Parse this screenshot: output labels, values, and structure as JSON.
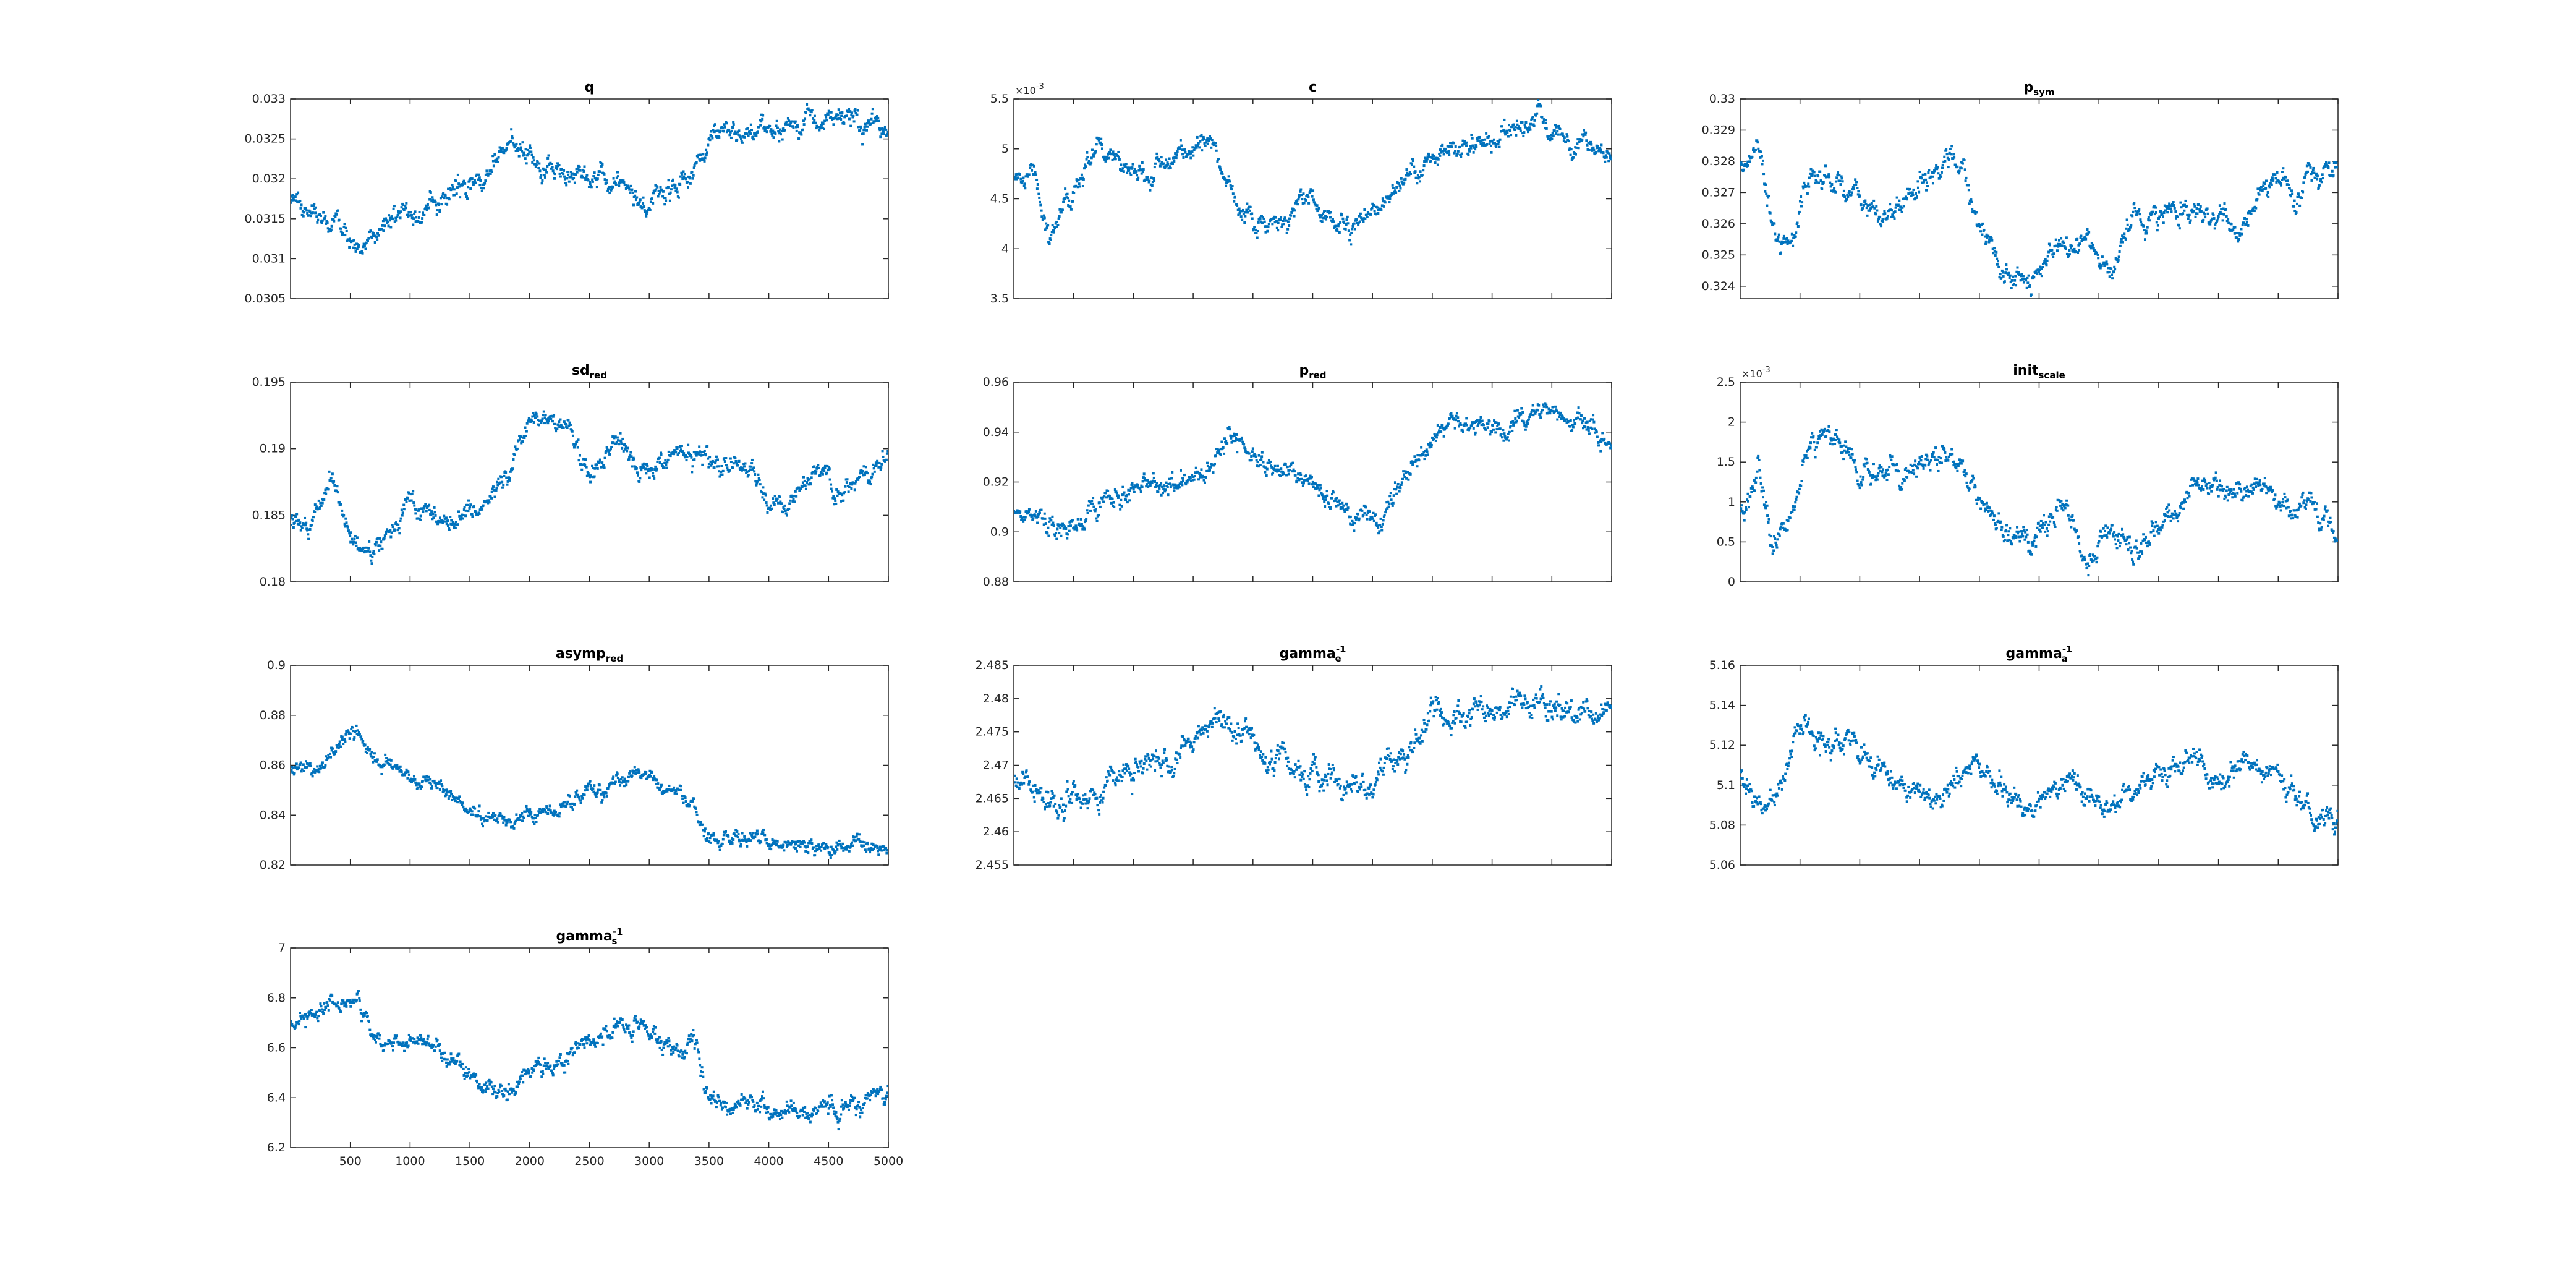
{
  "figure": {
    "background": "#ffffff"
  },
  "chart_data": [
    {
      "type": "scatter",
      "title": "q",
      "title_sub": "",
      "title_sup": "",
      "color": "#0072BD",
      "xlim": [
        0,
        5000
      ],
      "ylim": [
        0.0305,
        0.033
      ],
      "yticks": [
        "0.0305",
        "0.031",
        "0.0315",
        "0.032",
        "0.0325",
        "0.033"
      ],
      "y_exponent": "",
      "show_xtick_labels": false,
      "xticks": [
        "500",
        "1000",
        "1500",
        "2000",
        "2500",
        "3000",
        "3500",
        "4000",
        "4500",
        "5000"
      ],
      "grid": false,
      "trend": [
        [
          0,
          0.03175
        ],
        [
          200,
          0.0316
        ],
        [
          400,
          0.03135
        ],
        [
          600,
          0.0311
        ],
        [
          800,
          0.03155
        ],
        [
          1000,
          0.0316
        ],
        [
          1300,
          0.0318
        ],
        [
          1600,
          0.032
        ],
        [
          1800,
          0.03235
        ],
        [
          2000,
          0.03235
        ],
        [
          2200,
          0.0321
        ],
        [
          2500,
          0.03195
        ],
        [
          2800,
          0.0319
        ],
        [
          3000,
          0.03165
        ],
        [
          3200,
          0.03195
        ],
        [
          3450,
          0.03215
        ],
        [
          3550,
          0.03258
        ],
        [
          4000,
          0.0326
        ],
        [
          4500,
          0.03275
        ],
        [
          5000,
          0.03265
        ]
      ],
      "noise": 8e-05
    },
    {
      "type": "scatter",
      "title": "c",
      "title_sub": "",
      "title_sup": "",
      "color": "#0072BD",
      "xlim": [
        0,
        5000
      ],
      "ylim": [
        0.0035,
        0.0055
      ],
      "yticks": [
        "3.5",
        "4",
        "4.5",
        "5",
        "5.5"
      ],
      "y_exponent": "-3",
      "show_xtick_labels": false,
      "xticks": [
        "500",
        "1000",
        "1500",
        "2000",
        "2500",
        "3000",
        "3500",
        "4000",
        "4500",
        "5000"
      ],
      "grid": false,
      "trend": [
        [
          0,
          0.00465
        ],
        [
          150,
          0.0048
        ],
        [
          300,
          0.0041
        ],
        [
          450,
          0.0045
        ],
        [
          700,
          0.00498
        ],
        [
          900,
          0.0049
        ],
        [
          1000,
          0.0047
        ],
        [
          1300,
          0.0049
        ],
        [
          1600,
          0.00505
        ],
        [
          1750,
          0.0047
        ],
        [
          2000,
          0.00425
        ],
        [
          2300,
          0.00435
        ],
        [
          2500,
          0.0045
        ],
        [
          2700,
          0.0042
        ],
        [
          2900,
          0.0043
        ],
        [
          3200,
          0.00465
        ],
        [
          3500,
          0.00495
        ],
        [
          3900,
          0.00505
        ],
        [
          4200,
          0.0052
        ],
        [
          4500,
          0.0052
        ],
        [
          4700,
          0.00505
        ],
        [
          5000,
          0.0049
        ]
      ],
      "noise": 6e-05
    },
    {
      "type": "scatter",
      "title": "p",
      "title_sub": "sym",
      "title_sup": "",
      "color": "#0072BD",
      "xlim": [
        0,
        5000
      ],
      "ylim": [
        0.3236,
        0.33
      ],
      "yticks": [
        "0.324",
        "0.325",
        "0.326",
        "0.327",
        "0.328",
        "0.329",
        "0.33"
      ],
      "y_exponent": "",
      "show_xtick_labels": false,
      "xticks": [
        "500",
        "1000",
        "1500",
        "2000",
        "2500",
        "3000",
        "3500",
        "4000",
        "4500",
        "5000"
      ],
      "grid": false,
      "trend": [
        [
          0,
          0.3278
        ],
        [
          150,
          0.3285
        ],
        [
          300,
          0.3255
        ],
        [
          450,
          0.3255
        ],
        [
          600,
          0.3275
        ],
        [
          900,
          0.3272
        ],
        [
          1200,
          0.3262
        ],
        [
          1400,
          0.3268
        ],
        [
          1700,
          0.328
        ],
        [
          1850,
          0.328
        ],
        [
          2000,
          0.326
        ],
        [
          2200,
          0.3243
        ],
        [
          2400,
          0.3242
        ],
        [
          2600,
          0.325
        ],
        [
          2900,
          0.3255
        ],
        [
          3100,
          0.3245
        ],
        [
          3300,
          0.3262
        ],
        [
          3600,
          0.3265
        ],
        [
          3900,
          0.3262
        ],
        [
          4200,
          0.3257
        ],
        [
          4400,
          0.3273
        ],
        [
          4600,
          0.3268
        ],
        [
          4800,
          0.3278
        ],
        [
          5000,
          0.3274
        ]
      ],
      "noise": 0.00022
    },
    {
      "type": "scatter",
      "title": "sd",
      "title_sub": "red",
      "title_sup": "",
      "color": "#0072BD",
      "xlim": [
        0,
        5000
      ],
      "ylim": [
        0.18,
        0.195
      ],
      "yticks": [
        "0.18",
        "0.185",
        "0.19",
        "0.195"
      ],
      "y_exponent": "",
      "show_xtick_labels": false,
      "xticks": [
        "500",
        "1000",
        "1500",
        "2000",
        "2500",
        "3000",
        "3500",
        "4000",
        "4500",
        "5000"
      ],
      "grid": false,
      "trend": [
        [
          0,
          0.1845
        ],
        [
          150,
          0.1838
        ],
        [
          350,
          0.188
        ],
        [
          500,
          0.183
        ],
        [
          700,
          0.1822
        ],
        [
          900,
          0.184
        ],
        [
          1000,
          0.1858
        ],
        [
          1300,
          0.185
        ],
        [
          1600,
          0.1855
        ],
        [
          1800,
          0.188
        ],
        [
          2000,
          0.1925
        ],
        [
          2300,
          0.1918
        ],
        [
          2500,
          0.188
        ],
        [
          2700,
          0.1905
        ],
        [
          2900,
          0.1885
        ],
        [
          3200,
          0.1895
        ],
        [
          3500,
          0.189
        ],
        [
          3800,
          0.1885
        ],
        [
          4000,
          0.1865
        ],
        [
          4200,
          0.186
        ],
        [
          4400,
          0.189
        ],
        [
          4600,
          0.1865
        ],
        [
          4800,
          0.188
        ],
        [
          5000,
          0.1895
        ]
      ],
      "noise": 0.00045
    },
    {
      "type": "scatter",
      "title": "p",
      "title_sub": "red",
      "title_sup": "",
      "color": "#0072BD",
      "xlim": [
        0,
        5000
      ],
      "ylim": [
        0.88,
        0.96
      ],
      "yticks": [
        "0.88",
        "0.9",
        "0.92",
        "0.94",
        "0.96"
      ],
      "y_exponent": "",
      "show_xtick_labels": false,
      "xticks": [
        "500",
        "1000",
        "1500",
        "2000",
        "2500",
        "3000",
        "3500",
        "4000",
        "4500",
        "5000"
      ],
      "grid": false,
      "trend": [
        [
          0,
          0.908
        ],
        [
          200,
          0.905
        ],
        [
          400,
          0.9
        ],
        [
          600,
          0.905
        ],
        [
          800,
          0.915
        ],
        [
          1000,
          0.915
        ],
        [
          1300,
          0.92
        ],
        [
          1600,
          0.925
        ],
        [
          1800,
          0.938
        ],
        [
          2000,
          0.932
        ],
        [
          2200,
          0.925
        ],
        [
          2500,
          0.918
        ],
        [
          2800,
          0.91
        ],
        [
          3000,
          0.902
        ],
        [
          3200,
          0.915
        ],
        [
          3500,
          0.94
        ],
        [
          3800,
          0.943
        ],
        [
          4100,
          0.942
        ],
        [
          4400,
          0.948
        ],
        [
          4700,
          0.945
        ],
        [
          5000,
          0.937
        ]
      ],
      "noise": 0.0025
    },
    {
      "type": "scatter",
      "title": "init",
      "title_sub": "scale",
      "title_sup": "",
      "color": "#0072BD",
      "xlim": [
        0,
        5000
      ],
      "ylim": [
        0,
        0.0025
      ],
      "yticks": [
        "0",
        "0.5",
        "1",
        "1.5",
        "2",
        "2.5"
      ],
      "y_exponent": "-3",
      "show_xtick_labels": false,
      "xticks": [
        "500",
        "1000",
        "1500",
        "2000",
        "2500",
        "3000",
        "3500",
        "4000",
        "4500",
        "5000"
      ],
      "grid": false,
      "trend": [
        [
          0,
          0.0009
        ],
        [
          150,
          0.0012
        ],
        [
          300,
          0.0004
        ],
        [
          450,
          0.001
        ],
        [
          600,
          0.0018
        ],
        [
          800,
          0.0019
        ],
        [
          1000,
          0.0013
        ],
        [
          1300,
          0.0014
        ],
        [
          1600,
          0.0016
        ],
        [
          1800,
          0.0015
        ],
        [
          2000,
          0.001
        ],
        [
          2200,
          0.0005
        ],
        [
          2500,
          0.0006
        ],
        [
          2700,
          0.001
        ],
        [
          2900,
          0.0003
        ],
        [
          3100,
          0.0006
        ],
        [
          3300,
          0.0004
        ],
        [
          3500,
          0.0007
        ],
        [
          3800,
          0.0012
        ],
        [
          4100,
          0.0011
        ],
        [
          4400,
          0.0012
        ],
        [
          4600,
          0.0008
        ],
        [
          4800,
          0.001
        ],
        [
          5000,
          0.0004
        ]
      ],
      "noise": 9e-05
    },
    {
      "type": "scatter",
      "title": "asymp",
      "title_sub": "red",
      "title_sup": "",
      "color": "#0072BD",
      "xlim": [
        0,
        5000
      ],
      "ylim": [
        0.82,
        0.9
      ],
      "yticks": [
        "0.82",
        "0.84",
        "0.86",
        "0.88",
        "0.9"
      ],
      "y_exponent": "",
      "show_xtick_labels": false,
      "xticks": [
        "500",
        "1000",
        "1500",
        "2000",
        "2500",
        "3000",
        "3500",
        "4000",
        "4500",
        "5000"
      ],
      "grid": false,
      "trend": [
        [
          0,
          0.857
        ],
        [
          200,
          0.858
        ],
        [
          400,
          0.868
        ],
        [
          550,
          0.876
        ],
        [
          700,
          0.86
        ],
        [
          900,
          0.86
        ],
        [
          1100,
          0.853
        ],
        [
          1400,
          0.848
        ],
        [
          1600,
          0.838
        ],
        [
          1900,
          0.837
        ],
        [
          2200,
          0.843
        ],
        [
          2500,
          0.847
        ],
        [
          2700,
          0.852
        ],
        [
          2950,
          0.86
        ],
        [
          3100,
          0.85
        ],
        [
          3350,
          0.845
        ],
        [
          3500,
          0.831
        ],
        [
          3800,
          0.83
        ],
        [
          4200,
          0.829
        ],
        [
          4500,
          0.826
        ],
        [
          4800,
          0.828
        ],
        [
          5000,
          0.827
        ]
      ],
      "noise": 0.0018
    },
    {
      "type": "scatter",
      "title": "gamma",
      "title_sub": "e",
      "title_sup": "-1",
      "color": "#0072BD",
      "xlim": [
        0,
        5000
      ],
      "ylim": [
        2.455,
        2.485
      ],
      "yticks": [
        "2.455",
        "2.46",
        "2.465",
        "2.47",
        "2.475",
        "2.48",
        "2.485"
      ],
      "y_exponent": "",
      "show_xtick_labels": false,
      "xticks": [
        "500",
        "1000",
        "1500",
        "2000",
        "2500",
        "3000",
        "3500",
        "4000",
        "4500",
        "5000"
      ],
      "grid": false,
      "trend": [
        [
          0,
          2.468
        ],
        [
          200,
          2.466
        ],
        [
          400,
          2.464
        ],
        [
          600,
          2.465
        ],
        [
          800,
          2.468
        ],
        [
          1000,
          2.47
        ],
        [
          1300,
          2.47
        ],
        [
          1500,
          2.474
        ],
        [
          1700,
          2.477
        ],
        [
          1900,
          2.474
        ],
        [
          2100,
          2.471
        ],
        [
          2400,
          2.469
        ],
        [
          2600,
          2.468
        ],
        [
          2800,
          2.466
        ],
        [
          3000,
          2.467
        ],
        [
          3300,
          2.472
        ],
        [
          3500,
          2.478
        ],
        [
          3800,
          2.478
        ],
        [
          4100,
          2.479
        ],
        [
          4400,
          2.48
        ],
        [
          4700,
          2.478
        ],
        [
          5000,
          2.477
        ]
      ],
      "noise": 0.0012
    },
    {
      "type": "scatter",
      "title": "gamma",
      "title_sub": "a",
      "title_sup": "-1",
      "color": "#0072BD",
      "xlim": [
        0,
        5000
      ],
      "ylim": [
        5.06,
        5.16
      ],
      "yticks": [
        "5.06",
        "5.08",
        "5.1",
        "5.12",
        "5.14",
        "5.16"
      ],
      "y_exponent": "",
      "show_xtick_labels": false,
      "xticks": [
        "500",
        "1000",
        "1500",
        "2000",
        "2500",
        "3000",
        "3500",
        "4000",
        "4500",
        "5000"
      ],
      "grid": false,
      "trend": [
        [
          0,
          5.1
        ],
        [
          200,
          5.09
        ],
        [
          350,
          5.1
        ],
        [
          500,
          5.135
        ],
        [
          700,
          5.12
        ],
        [
          900,
          5.13
        ],
        [
          1100,
          5.11
        ],
        [
          1400,
          5.1
        ],
        [
          1600,
          5.09
        ],
        [
          1800,
          5.1
        ],
        [
          2000,
          5.11
        ],
        [
          2200,
          5.095
        ],
        [
          2400,
          5.09
        ],
        [
          2600,
          5.1
        ],
        [
          2800,
          5.105
        ],
        [
          3000,
          5.09
        ],
        [
          3200,
          5.095
        ],
        [
          3500,
          5.105
        ],
        [
          3800,
          5.115
        ],
        [
          4000,
          5.1
        ],
        [
          4200,
          5.11
        ],
        [
          4500,
          5.105
        ],
        [
          4700,
          5.09
        ],
        [
          5000,
          5.08
        ]
      ],
      "noise": 0.0035
    },
    {
      "type": "scatter",
      "title": "gamma",
      "title_sub": "s",
      "title_sup": "-1",
      "color": "#0072BD",
      "xlim": [
        0,
        5000
      ],
      "ylim": [
        6.2,
        7
      ],
      "yticks": [
        "6.2",
        "6.4",
        "6.6",
        "6.8",
        "7"
      ],
      "y_exponent": "",
      "show_xtick_labels": true,
      "xticks": [
        "500",
        "1000",
        "1500",
        "2000",
        "2500",
        "3000",
        "3500",
        "4000",
        "4500",
        "5000"
      ],
      "grid": false,
      "trend": [
        [
          0,
          6.7
        ],
        [
          200,
          6.72
        ],
        [
          400,
          6.78
        ],
        [
          550,
          6.8
        ],
        [
          700,
          6.65
        ],
        [
          900,
          6.62
        ],
        [
          1200,
          6.6
        ],
        [
          1400,
          6.55
        ],
        [
          1600,
          6.45
        ],
        [
          1800,
          6.42
        ],
        [
          2000,
          6.5
        ],
        [
          2300,
          6.58
        ],
        [
          2500,
          6.62
        ],
        [
          2700,
          6.68
        ],
        [
          2950,
          6.7
        ],
        [
          3200,
          6.62
        ],
        [
          3400,
          6.58
        ],
        [
          3500,
          6.38
        ],
        [
          3800,
          6.38
        ],
        [
          4100,
          6.33
        ],
        [
          4400,
          6.33
        ],
        [
          4700,
          6.38
        ],
        [
          5000,
          6.43
        ]
      ],
      "noise": 0.022
    }
  ]
}
